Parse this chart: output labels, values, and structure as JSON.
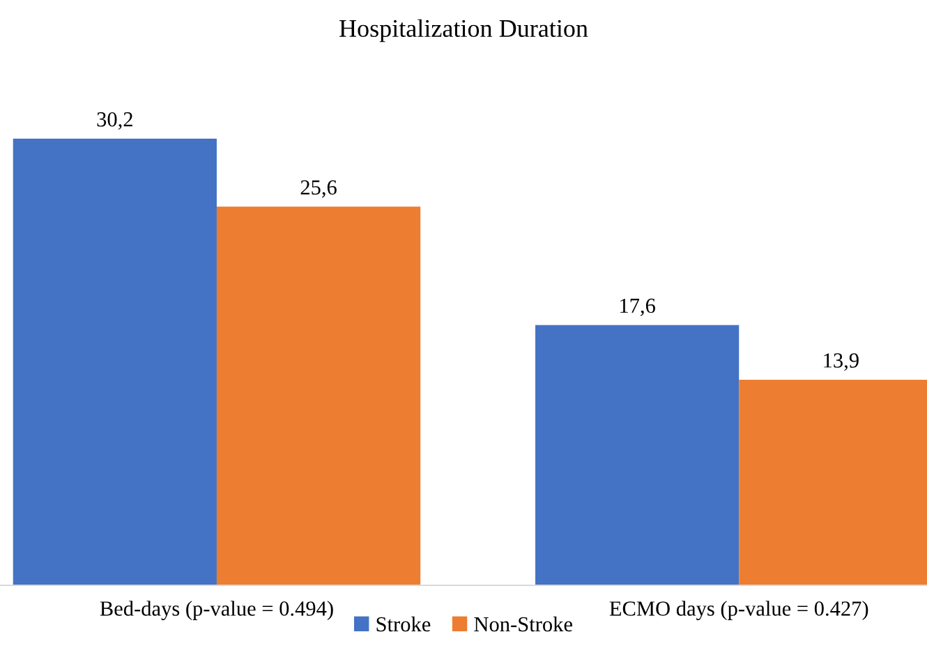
{
  "chart_data": {
    "type": "bar",
    "title": "Hospitalization Duration",
    "categories": [
      "Bed-days (p-value = 0.494)",
      "ECMO days (p-value = 0.427)"
    ],
    "series": [
      {
        "name": "Stroke",
        "color": "#4472c4",
        "values": [
          30.2,
          17.6
        ],
        "value_labels": [
          "30,2",
          "17,6"
        ]
      },
      {
        "name": "Non-Stroke",
        "color": "#ed7d31",
        "values": [
          25.6,
          13.9
        ],
        "value_labels": [
          "25,6",
          "13,9"
        ]
      }
    ],
    "legend": "bottom"
  }
}
